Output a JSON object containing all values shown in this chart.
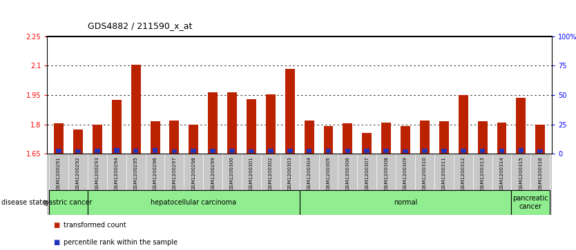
{
  "title": "GDS4882 / 211590_x_at",
  "samples": [
    "GSM1200291",
    "GSM1200292",
    "GSM1200293",
    "GSM1200294",
    "GSM1200295",
    "GSM1200296",
    "GSM1200297",
    "GSM1200298",
    "GSM1200299",
    "GSM1200300",
    "GSM1200301",
    "GSM1200302",
    "GSM1200303",
    "GSM1200304",
    "GSM1200305",
    "GSM1200306",
    "GSM1200307",
    "GSM1200308",
    "GSM1200309",
    "GSM1200310",
    "GSM1200311",
    "GSM1200312",
    "GSM1200313",
    "GSM1200314",
    "GSM1200315",
    "GSM1200316"
  ],
  "red_values": [
    1.805,
    1.775,
    1.8,
    1.925,
    2.105,
    1.815,
    1.82,
    1.8,
    1.965,
    1.965,
    1.93,
    1.955,
    2.085,
    1.82,
    1.79,
    1.805,
    1.755,
    1.81,
    1.79,
    1.82,
    1.815,
    1.95,
    1.815,
    1.81,
    1.935,
    1.8
  ],
  "blue_heights": [
    0.022,
    0.018,
    0.022,
    0.026,
    0.022,
    0.026,
    0.018,
    0.022,
    0.022,
    0.022,
    0.018,
    0.022,
    0.022,
    0.022,
    0.022,
    0.022,
    0.022,
    0.022,
    0.018,
    0.022,
    0.022,
    0.022,
    0.022,
    0.022,
    0.026,
    0.018
  ],
  "ylim_left": [
    1.65,
    2.25
  ],
  "yticks_left": [
    1.65,
    1.8,
    1.95,
    2.1,
    2.25
  ],
  "ytick_labels_left": [
    "1.65",
    "1.8",
    "1.95",
    "2.1",
    "2.25"
  ],
  "ylim_right": [
    0,
    100
  ],
  "yticks_right": [
    0,
    25,
    50,
    75,
    100
  ],
  "ytick_labels_right": [
    "0",
    "25",
    "50",
    "75",
    "100%"
  ],
  "disease_groups": [
    {
      "label": "gastric cancer",
      "start": 0,
      "end": 2
    },
    {
      "label": "hepatocellular carcinoma",
      "start": 2,
      "end": 13
    },
    {
      "label": "normal",
      "start": 13,
      "end": 24
    },
    {
      "label": "pancreatic\ncancer",
      "start": 24,
      "end": 26
    }
  ],
  "disease_group_boundaries": [
    2,
    13,
    24
  ],
  "bar_color": "#BB2200",
  "blue_color": "#2233BB",
  "base_value": 1.65,
  "bg_color": "#FFFFFF",
  "legend_items": [
    {
      "color": "#BB2200",
      "label": "transformed count"
    },
    {
      "color": "#2233BB",
      "label": "percentile rank within the sample"
    }
  ],
  "disease_state_label": "disease state",
  "bar_width": 0.5,
  "title_fontsize": 9,
  "tick_fontsize": 7,
  "sample_fontsize": 5.2,
  "disease_fontsize": 7,
  "legend_fontsize": 7,
  "grid_dotted_at": [
    1.8,
    1.95,
    2.1
  ],
  "green_color": "#90EE90",
  "gray_color": "#C8C8C8"
}
